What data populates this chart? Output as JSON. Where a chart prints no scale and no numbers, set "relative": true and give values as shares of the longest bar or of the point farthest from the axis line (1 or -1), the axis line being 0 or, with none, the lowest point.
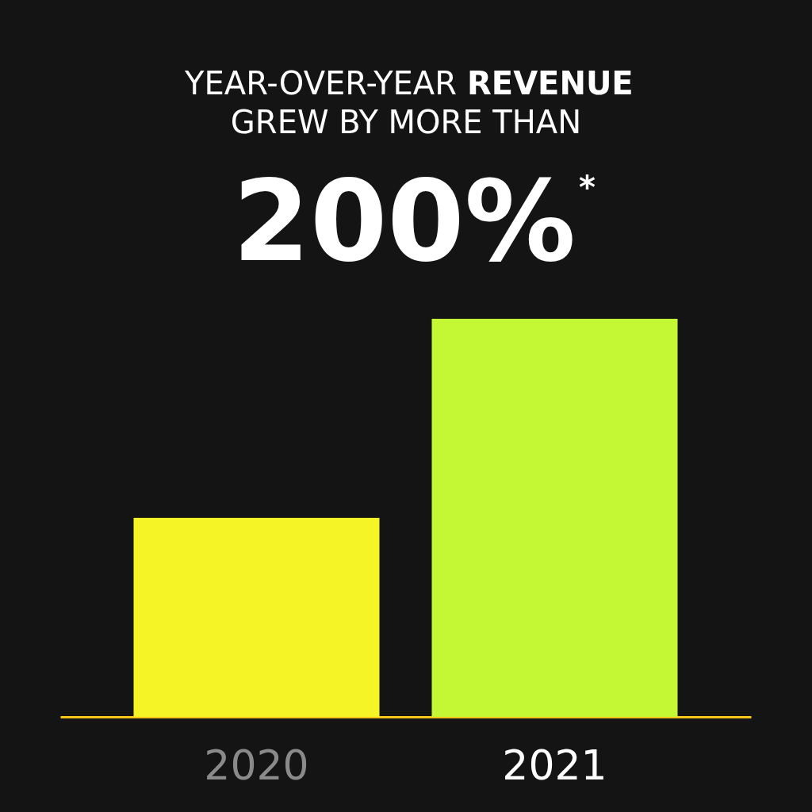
{
  "chart_data": {
    "type": "bar",
    "title": "YEAR-OVER-YEAR REVENUE\nGREW BY MORE THAN",
    "subtitle": "200%$^{*}$",
    "categories": [
      "2020",
      "2021"
    ],
    "values": [
      0.5,
      1
    ],
    "colors": [
      "#f4f426",
      "#c4f834"
    ],
    "relative": true
  }
}
